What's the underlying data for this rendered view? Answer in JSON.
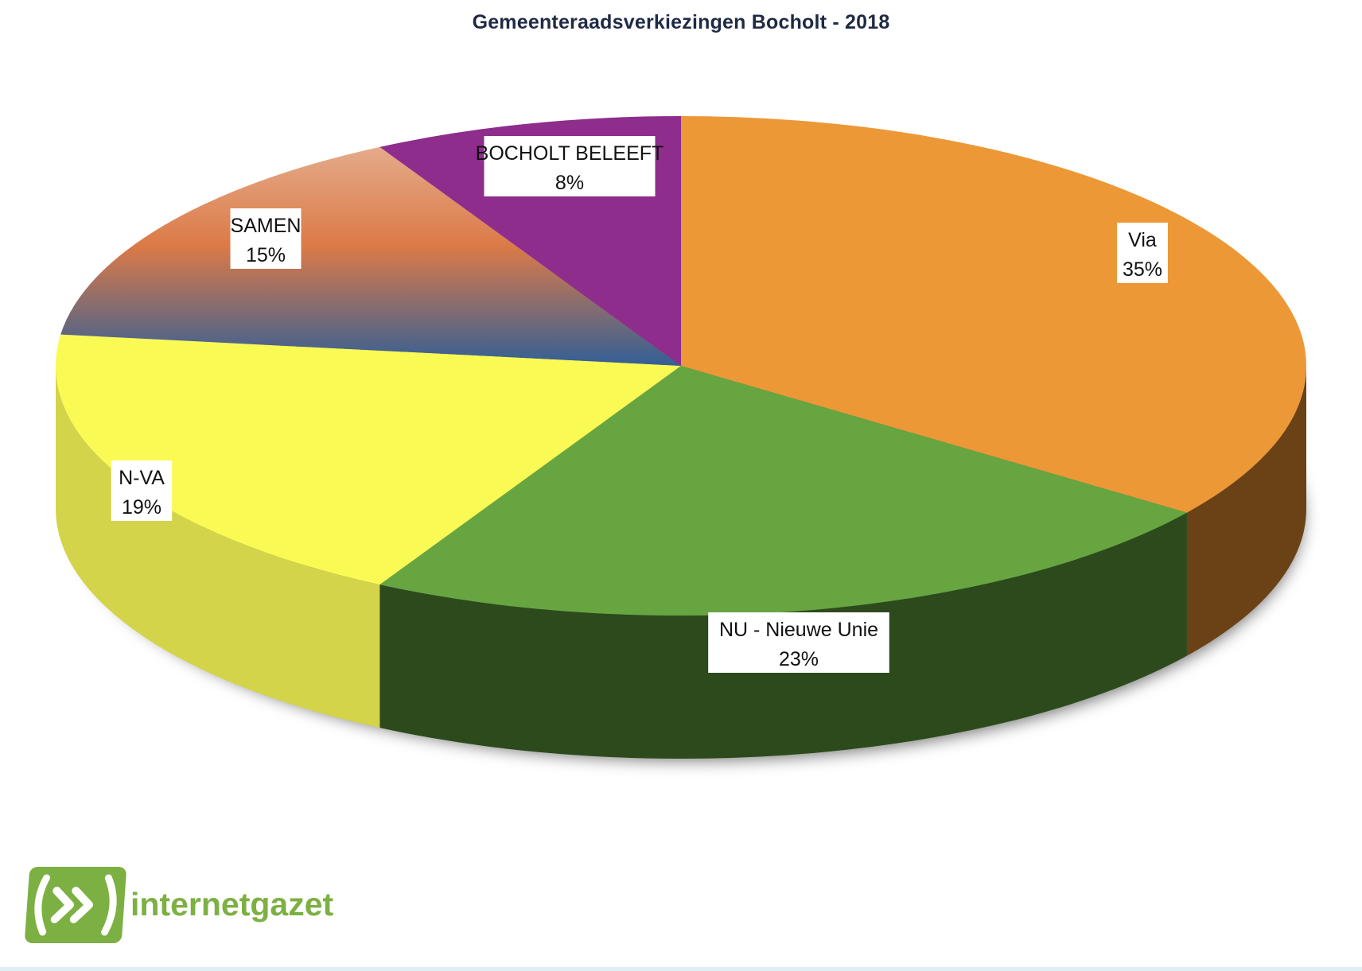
{
  "chart_data": {
    "type": "pie",
    "title": "Gemeenteraadsverkiezingen Bocholt - 2018",
    "style": "3d-tilted",
    "categories": [
      "Via",
      "NU - Nieuwe Unie",
      "N-VA",
      "SAMEN",
      "BOCHOLT BELEEFT"
    ],
    "values": [
      35,
      23,
      19,
      15,
      8
    ],
    "value_labels": [
      "35%",
      "23%",
      "19%",
      "15%",
      "8%"
    ],
    "colors": [
      "#ec9837",
      "#67a541",
      "#fafa55",
      "#d97a45",
      "#8e2d8c"
    ],
    "side_colors": [
      "#6b4216",
      "#2d4a1c",
      "#d4d44a",
      "#7a5030",
      "#5a1f58"
    ],
    "start_angle_deg": -90,
    "direction": "clockwise",
    "labels_in_boxes": true
  },
  "logo": {
    "text": "internetgazet",
    "icon": "fast-forward-icon",
    "color": "#7db043"
  }
}
